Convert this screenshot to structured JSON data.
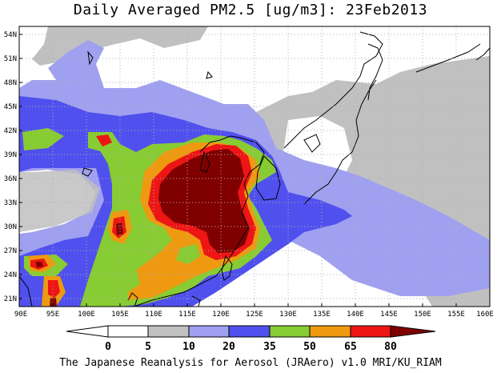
{
  "title": "Daily Averaged PM2.5 [ug/m3]: 23Feb2013",
  "footer": "The Japanese Reanalysis for Aerosol (JRAero) v1.0 MRI/KU_RIAM",
  "map": {
    "lon_range": [
      90,
      160
    ],
    "lat_range": [
      20,
      55
    ],
    "lat_ticks": [
      "21N",
      "24N",
      "27N",
      "30N",
      "33N",
      "36N",
      "39N",
      "42N",
      "45N",
      "48N",
      "51N",
      "54N"
    ],
    "lon_ticks": [
      "90E",
      "95E",
      "100E",
      "105E",
      "110E",
      "115E",
      "120E",
      "125E",
      "130E",
      "135E",
      "140E",
      "145E",
      "150E",
      "155E",
      "160E"
    ]
  },
  "legend": {
    "labels": [
      "0",
      "5",
      "10",
      "20",
      "35",
      "50",
      "65",
      "80"
    ],
    "colors": [
      "#ffffff",
      "#c0c0c0",
      "#a0a0f0",
      "#5050ee",
      "#88cc33",
      "#ee9910",
      "#ee1515",
      "#800000"
    ]
  }
}
